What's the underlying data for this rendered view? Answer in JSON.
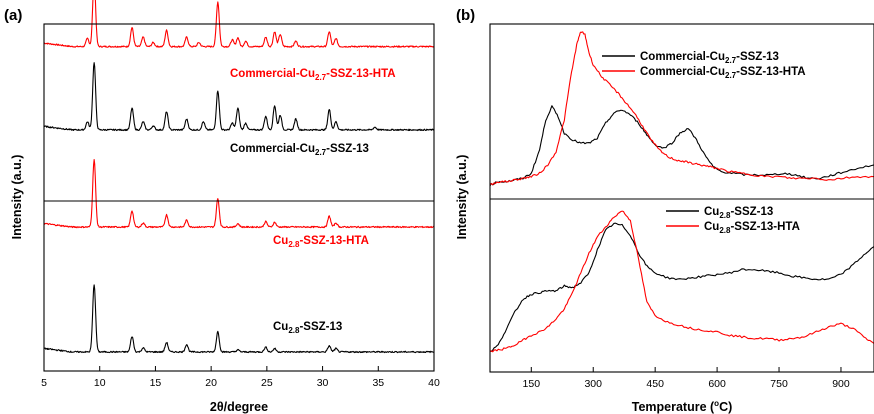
{
  "colors": {
    "black_series": "#000000",
    "red_series": "#ff0000"
  },
  "chart_data": [
    {
      "type": "line",
      "panel_label": "(a)",
      "xlabel": "2θ/degree",
      "ylabel": "Intensity (a.u.)",
      "xlim": [
        5,
        40
      ],
      "xticks": [
        5,
        10,
        15,
        20,
        25,
        30,
        35,
        40
      ],
      "yticks": [],
      "grid": false,
      "series": [
        {
          "name": "Commercial-Cu2.7-SSZ-13-HTA",
          "label_main": "Commercial-Cu",
          "label_sub": "2.7",
          "label_rest": "-SSZ-13-HTA",
          "color": "red",
          "baseline": 0.935,
          "peaks": [
            [
              8.9,
              0.12
            ],
            [
              9.5,
              1.0
            ],
            [
              12.9,
              0.28
            ],
            [
              13.9,
              0.14
            ],
            [
              14.8,
              0.06
            ],
            [
              16.0,
              0.24
            ],
            [
              17.8,
              0.14
            ],
            [
              18.9,
              0.06
            ],
            [
              20.6,
              0.66
            ],
            [
              21.9,
              0.1
            ],
            [
              22.4,
              0.13
            ],
            [
              23.1,
              0.08
            ],
            [
              24.9,
              0.14
            ],
            [
              25.7,
              0.22
            ],
            [
              26.2,
              0.18
            ],
            [
              27.6,
              0.08
            ],
            [
              30.6,
              0.22
            ],
            [
              31.2,
              0.12
            ]
          ]
        },
        {
          "name": "Commercial-Cu2.7-SSZ-13",
          "label_main": "Commercial-Cu",
          "label_sub": "2.7",
          "label_rest": "-SSZ-13",
          "color": "black",
          "baseline": 0.695,
          "peaks": [
            [
              8.9,
              0.12
            ],
            [
              9.5,
              1.0
            ],
            [
              12.9,
              0.32
            ],
            [
              13.9,
              0.12
            ],
            [
              14.8,
              0.06
            ],
            [
              16.0,
              0.27
            ],
            [
              17.8,
              0.16
            ],
            [
              19.3,
              0.12
            ],
            [
              20.6,
              0.58
            ],
            [
              21.9,
              0.1
            ],
            [
              22.4,
              0.32
            ],
            [
              23.1,
              0.1
            ],
            [
              24.9,
              0.2
            ],
            [
              25.7,
              0.36
            ],
            [
              26.2,
              0.22
            ],
            [
              27.6,
              0.16
            ],
            [
              30.6,
              0.3
            ],
            [
              31.2,
              0.12
            ],
            [
              34.7,
              0.04
            ]
          ]
        },
        {
          "name": "Cu2.8-SSZ-13-HTA",
          "label_main": "Cu",
          "label_sub": "2.8",
          "label_rest": "-SSZ-13-HTA",
          "color": "red",
          "baseline": 0.415,
          "peaks": [
            [
              9.5,
              1.0
            ],
            [
              12.9,
              0.24
            ],
            [
              13.9,
              0.06
            ],
            [
              16.0,
              0.18
            ],
            [
              17.8,
              0.1
            ],
            [
              20.6,
              0.42
            ],
            [
              22.4,
              0.05
            ],
            [
              24.9,
              0.08
            ],
            [
              25.7,
              0.07
            ],
            [
              30.6,
              0.16
            ],
            [
              31.2,
              0.06
            ]
          ]
        },
        {
          "name": "Cu2.8-SSZ-13",
          "label_main": "Cu",
          "label_sub": "2.8",
          "label_rest": "-SSZ-13",
          "color": "black",
          "baseline": 0.055,
          "peaks": [
            [
              9.5,
              1.0
            ],
            [
              12.9,
              0.23
            ],
            [
              13.9,
              0.06
            ],
            [
              16.0,
              0.14
            ],
            [
              17.8,
              0.11
            ],
            [
              20.6,
              0.3
            ],
            [
              22.4,
              0.03
            ],
            [
              24.9,
              0.07
            ],
            [
              25.7,
              0.05
            ],
            [
              30.6,
              0.09
            ],
            [
              31.2,
              0.05
            ]
          ]
        }
      ]
    },
    {
      "type": "line",
      "panel_label": "(b)",
      "xlabel": "Temperature (°C)",
      "xlabel_main": "Temperature (",
      "xlabel_sup": "o",
      "xlabel_rest": "C)",
      "ylabel": "Intensity (a.u.)",
      "xlim": [
        50,
        980
      ],
      "xticks": [
        150,
        300,
        450,
        600,
        750,
        900
      ],
      "yticks": [],
      "grid": false,
      "subplots": [
        {
          "legend_position": "top-right",
          "series": [
            {
              "name": "Commercial-Cu2.7-SSZ-13",
              "label_main": "Commercial-Cu",
              "label_sub": "2.7",
              "label_rest": "-SSZ-13",
              "color": "black",
              "x": [
                50,
                70,
                90,
                110,
                130,
                150,
                170,
                185,
                200,
                215,
                230,
                250,
                270,
                290,
                310,
                330,
                350,
                370,
                390,
                410,
                430,
                450,
                470,
                490,
                510,
                530,
                550,
                570,
                590,
                610,
                640,
                670,
                700,
                730,
                760,
                790,
                820,
                850,
                880,
                910,
                940,
                980
              ],
              "y": [
                0.06,
                0.08,
                0.08,
                0.09,
                0.1,
                0.13,
                0.27,
                0.45,
                0.53,
                0.47,
                0.37,
                0.33,
                0.31,
                0.31,
                0.34,
                0.43,
                0.49,
                0.51,
                0.48,
                0.43,
                0.36,
                0.3,
                0.28,
                0.31,
                0.37,
                0.4,
                0.33,
                0.24,
                0.17,
                0.14,
                0.13,
                0.12,
                0.12,
                0.12,
                0.13,
                0.12,
                0.1,
                0.1,
                0.12,
                0.14,
                0.16,
                0.18
              ]
            },
            {
              "name": "Commercial-Cu2.7-SSZ-13-HTA",
              "label_main": "Commercial-Cu",
              "label_sub": "2.7",
              "label_rest": "-SSZ-13-HTA",
              "color": "red",
              "x": [
                50,
                70,
                90,
                110,
                130,
                150,
                170,
                190,
                210,
                230,
                245,
                260,
                270,
                280,
                290,
                300,
                320,
                340,
                360,
                380,
                400,
                420,
                440,
                460,
                480,
                500,
                520,
                540,
                560,
                580,
                600,
                630,
                660,
                690,
                720,
                750,
                780,
                810,
                840,
                870,
                900,
                940,
                980
              ],
              "y": [
                0.06,
                0.08,
                0.08,
                0.09,
                0.1,
                0.11,
                0.13,
                0.18,
                0.26,
                0.45,
                0.7,
                0.9,
                0.98,
                0.96,
                0.85,
                0.78,
                0.71,
                0.66,
                0.61,
                0.55,
                0.49,
                0.41,
                0.33,
                0.27,
                0.23,
                0.21,
                0.2,
                0.19,
                0.18,
                0.17,
                0.16,
                0.14,
                0.13,
                0.12,
                0.11,
                0.11,
                0.1,
                0.1,
                0.1,
                0.09,
                0.1,
                0.11,
                0.11
              ]
            }
          ]
        },
        {
          "legend_position": "top-right",
          "series": [
            {
              "name": "Cu2.8-SSZ-13",
              "label_main": "Cu",
              "label_sub": "2.8",
              "label_rest": "-SSZ-13",
              "color": "black",
              "x": [
                50,
                70,
                90,
                110,
                130,
                150,
                170,
                190,
                210,
                230,
                250,
                270,
                290,
                310,
                330,
                350,
                370,
                390,
                410,
                430,
                450,
                480,
                510,
                540,
                570,
                600,
                630,
                660,
                690,
                720,
                750,
                780,
                810,
                840,
                870,
                900,
                930,
                960,
                980
              ],
              "y": [
                0.1,
                0.14,
                0.24,
                0.34,
                0.42,
                0.45,
                0.46,
                0.47,
                0.47,
                0.5,
                0.49,
                0.52,
                0.58,
                0.72,
                0.84,
                0.88,
                0.87,
                0.81,
                0.7,
                0.62,
                0.58,
                0.55,
                0.54,
                0.55,
                0.56,
                0.57,
                0.58,
                0.6,
                0.6,
                0.59,
                0.58,
                0.56,
                0.55,
                0.54,
                0.54,
                0.57,
                0.63,
                0.7,
                0.74
              ]
            },
            {
              "name": "Cu2.8-SSZ-13-HTA",
              "label_main": "Cu",
              "label_sub": "2.8",
              "label_rest": "-SSZ-13-HTA",
              "color": "red",
              "x": [
                50,
                70,
                90,
                110,
                130,
                150,
                170,
                190,
                210,
                230,
                250,
                270,
                290,
                310,
                330,
                350,
                370,
                390,
                410,
                430,
                450,
                480,
                510,
                540,
                570,
                600,
                630,
                660,
                690,
                720,
                750,
                780,
                810,
                840,
                870,
                900,
                930,
                960,
                980
              ],
              "y": [
                0.1,
                0.11,
                0.12,
                0.14,
                0.17,
                0.2,
                0.22,
                0.25,
                0.3,
                0.36,
                0.46,
                0.58,
                0.7,
                0.8,
                0.86,
                0.92,
                0.96,
                0.9,
                0.66,
                0.4,
                0.32,
                0.28,
                0.26,
                0.24,
                0.23,
                0.22,
                0.2,
                0.19,
                0.18,
                0.18,
                0.17,
                0.18,
                0.19,
                0.22,
                0.25,
                0.27,
                0.24,
                0.18,
                0.15
              ]
            }
          ]
        }
      ]
    }
  ]
}
